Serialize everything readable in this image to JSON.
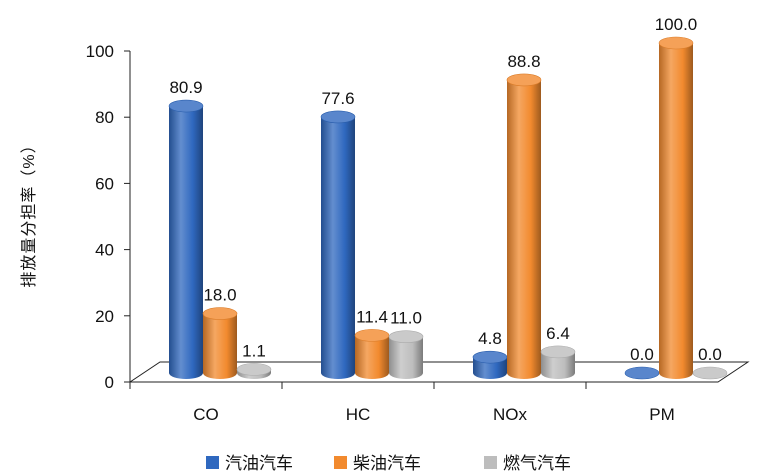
{
  "chart_data": {
    "type": "bar",
    "categories": [
      "CO",
      "HC",
      "NOx",
      "PM"
    ],
    "series": [
      {
        "name": "汽油汽车",
        "color": "#2f68bf",
        "values": [
          80.9,
          77.6,
          4.8,
          0.0
        ]
      },
      {
        "name": "柴油汽车",
        "color": "#f28a2e",
        "values": [
          18.0,
          11.4,
          88.8,
          100.0
        ]
      },
      {
        "name": "燃气汽车",
        "color": "#bdbdbd",
        "values": [
          1.1,
          11.0,
          6.4,
          0.0
        ]
      }
    ],
    "xlabel": "",
    "ylabel": "排放量分担率（%）",
    "ylim": [
      0,
      100
    ],
    "yticks": [
      0,
      20,
      40,
      60,
      80,
      100
    ],
    "data_labels": true,
    "grid": false,
    "legend": "bottom",
    "style": "3d-cylinder"
  }
}
